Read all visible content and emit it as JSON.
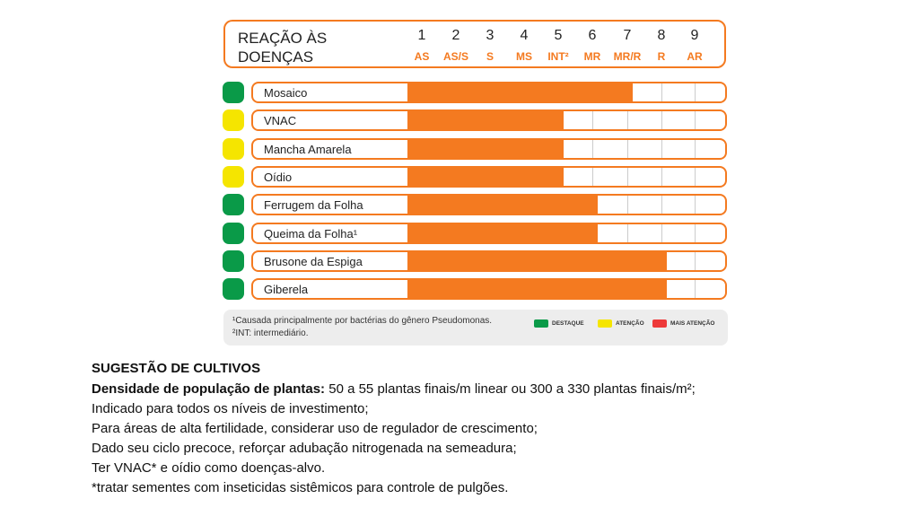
{
  "chart_data": {
    "type": "bar",
    "title": "REAÇÃO ÀS DOENÇAS",
    "scale": [
      {
        "n": "1",
        "c": "AS"
      },
      {
        "n": "2",
        "c": "AS/S"
      },
      {
        "n": "3",
        "c": "S"
      },
      {
        "n": "4",
        "c": "MS"
      },
      {
        "n": "5",
        "c": "INT²"
      },
      {
        "n": "6",
        "c": "MR"
      },
      {
        "n": "7",
        "c": "MR/R"
      },
      {
        "n": "8",
        "c": "R"
      },
      {
        "n": "9",
        "c": "AR"
      }
    ],
    "categories": [
      "Mosaico",
      "VNAC",
      "Mancha Amarela",
      "Oídio",
      "Ferrugem da Folha",
      "Queima da Folha¹",
      "Brusone da Espiga",
      "Giberela"
    ],
    "values": [
      7,
      5,
      5,
      5,
      6,
      6,
      8,
      8
    ],
    "status": [
      "destaque",
      "atencao",
      "atencao",
      "atencao",
      "destaque",
      "destaque",
      "destaque",
      "destaque"
    ],
    "xlim": [
      1,
      9
    ],
    "bar_color": "#f47a20"
  },
  "legend": {
    "items": [
      {
        "label": "DESTAQUE",
        "color": "#0a9a48"
      },
      {
        "label": "ATENÇÃO",
        "color": "#f5e500"
      },
      {
        "label": "MAIS ATENÇÃO",
        "color": "#ee3a3a"
      }
    ]
  },
  "footnotes": [
    "¹Causada principalmente por bactérias do gênero Pseudomonas.",
    "²INT: intermediário."
  ],
  "text": {
    "heading": "SUGESTÃO DE CULTIVOS",
    "density_label": "Densidade de população de plantas:",
    "density_value": " 50 a 55 plantas finais/m linear ou 300 a 330 plantas finais/m²;",
    "lines": [
      "Indicado para todos os níveis de investimento;",
      "Para áreas de alta fertilidade, considerar uso de regulador de crescimento;",
      "Dado seu ciclo precoce, reforçar adubação nitrogenada na semeadura;",
      "Ter VNAC* e oídio como doenças-alvo.",
      "*tratar sementes com inseticidas sistêmicos para controle de pulgões."
    ]
  }
}
